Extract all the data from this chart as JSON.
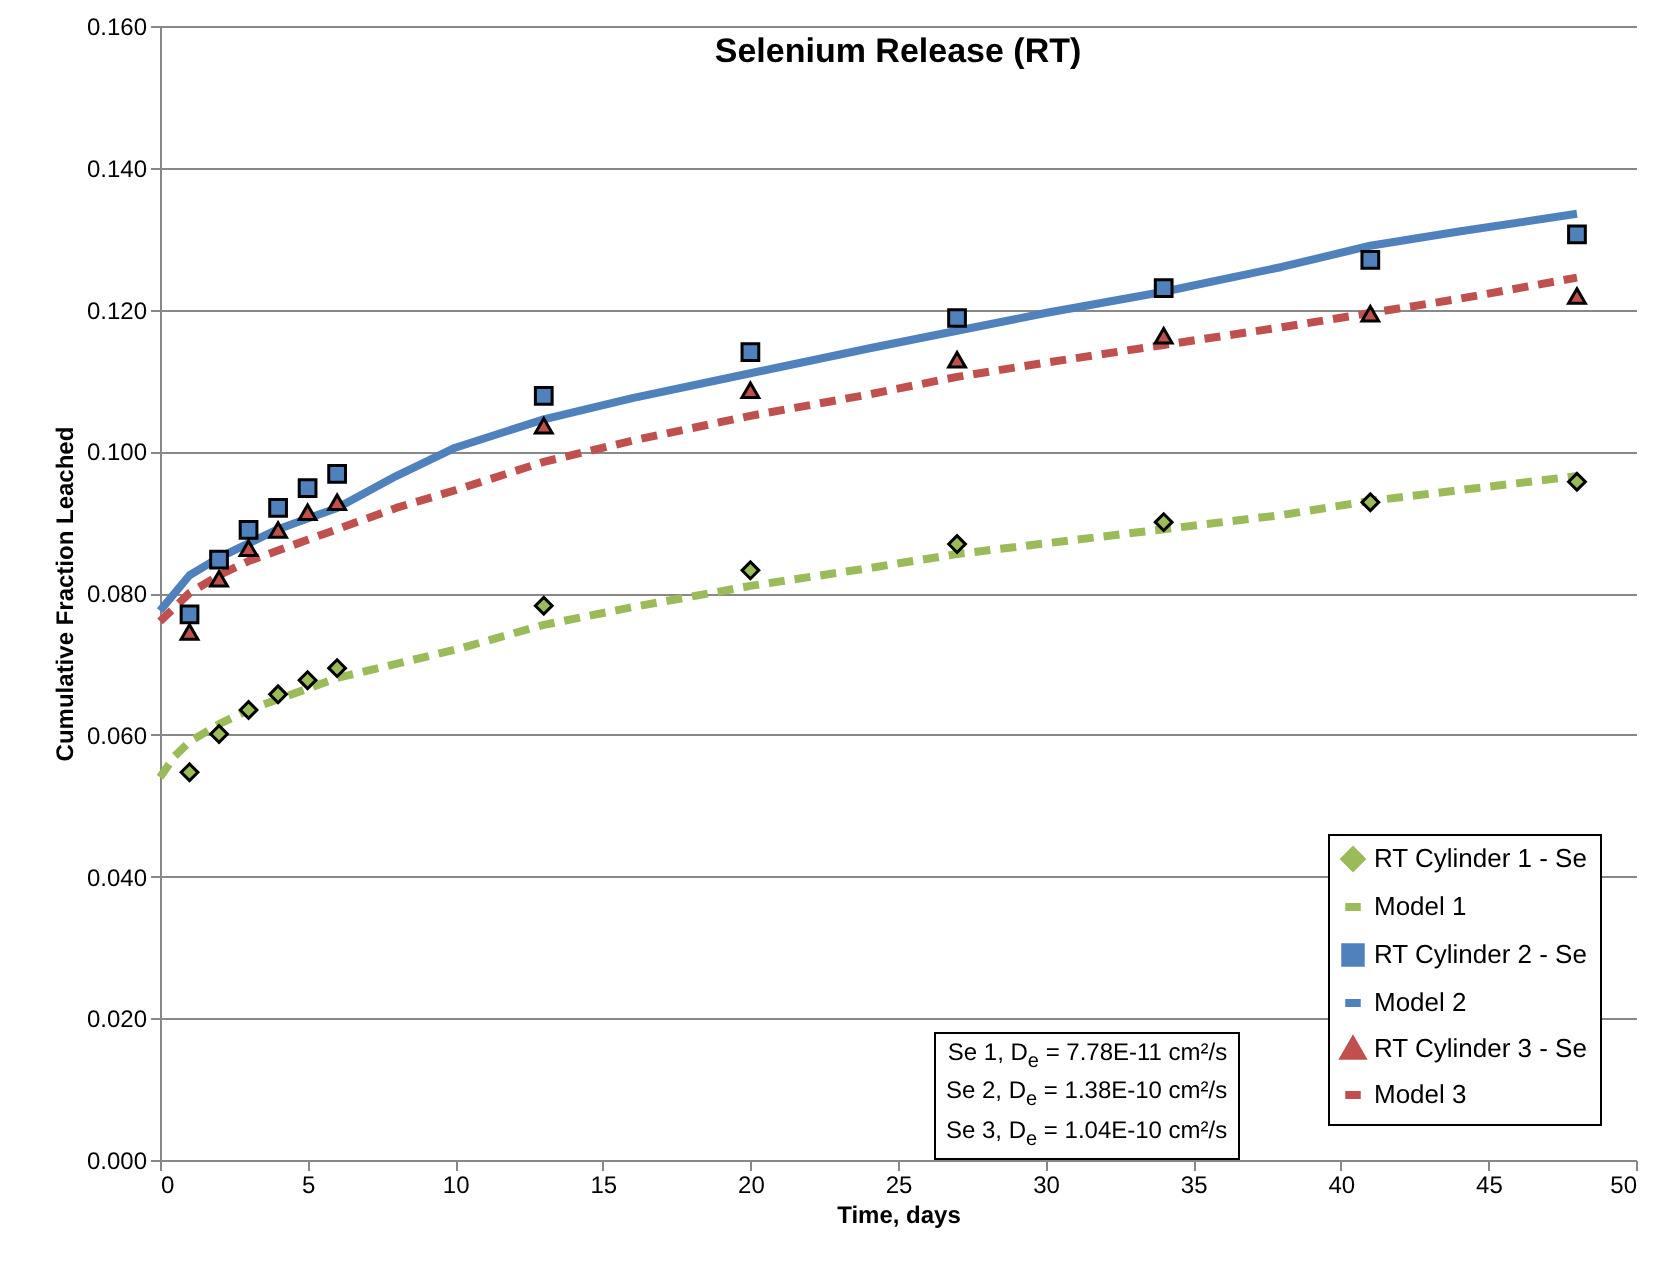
{
  "chart_data": {
    "type": "scatter",
    "title": "Selenium Release (RT)",
    "xlabel": "Time, days",
    "ylabel": "Cumulative Fraction Leached",
    "xlim": [
      0,
      50
    ],
    "xticks": [
      0,
      5,
      10,
      15,
      20,
      25,
      30,
      35,
      40,
      45,
      50
    ],
    "ylim": [
      0,
      0.16
    ],
    "yticks": [
      {
        "value": 0,
        "label": "0.000"
      },
      {
        "value": 0.02,
        "label": "0.020"
      },
      {
        "value": 0.04,
        "label": "0.040"
      },
      {
        "value": 0.06,
        "label": "0.060"
      },
      {
        "value": 0.08,
        "label": "0.080"
      },
      {
        "value": 0.1,
        "label": "0.100"
      },
      {
        "value": 0.12,
        "label": "0.120"
      },
      {
        "value": 0.14,
        "label": "0.140"
      },
      {
        "value": 0.16,
        "label": "0.160"
      }
    ],
    "grid": "y",
    "legend": "bottom right",
    "series": [
      {
        "name": "RT Cylinder 1 - Se",
        "marker": "diamond",
        "color": "#9bbb59",
        "x": [
          1,
          2,
          3,
          4,
          5,
          6,
          13,
          20,
          27,
          34,
          41,
          48
        ],
        "values": [
          0.0547,
          0.0601,
          0.0635,
          0.0657,
          0.0677,
          0.0694,
          0.0782,
          0.0832,
          0.0869,
          0.09,
          0.0928,
          0.0957
        ]
      },
      {
        "name": "Model 1",
        "type": "line",
        "line_style": "dashed",
        "color": "#9bbb59",
        "x": [
          0,
          0.5,
          1,
          2,
          3,
          4,
          5,
          6,
          8,
          10,
          13,
          16,
          20,
          24,
          27,
          30,
          34,
          38,
          41,
          44,
          48
        ],
        "values": [
          0.054,
          0.057,
          0.059,
          0.0615,
          0.0635,
          0.065,
          0.0665,
          0.068,
          0.07,
          0.072,
          0.0755,
          0.078,
          0.081,
          0.0835,
          0.0855,
          0.087,
          0.089,
          0.091,
          0.093,
          0.0945,
          0.0965
        ]
      },
      {
        "name": "RT Cylinder 2 - Se",
        "marker": "square",
        "color": "#4f81bd",
        "x": [
          1,
          2,
          3,
          4,
          5,
          6,
          13,
          20,
          27,
          34,
          41,
          48
        ],
        "values": [
          0.077,
          0.0847,
          0.0889,
          0.092,
          0.0948,
          0.0968,
          0.1078,
          0.114,
          0.1188,
          0.123,
          0.127,
          0.1306
        ]
      },
      {
        "name": "Model 2",
        "type": "line",
        "line_style": "solid",
        "color": "#4f81bd",
        "x": [
          0,
          0.5,
          1,
          2,
          3,
          4,
          5,
          6,
          8,
          10,
          13,
          16,
          20,
          24,
          27,
          30,
          34,
          38,
          41,
          44,
          48
        ],
        "values": [
          0.0775,
          0.08,
          0.0825,
          0.085,
          0.087,
          0.089,
          0.0905,
          0.092,
          0.0965,
          0.1005,
          0.1045,
          0.1075,
          0.111,
          0.1145,
          0.117,
          0.1195,
          0.1225,
          0.126,
          0.129,
          0.131,
          0.1335
        ]
      },
      {
        "name": "RT Cylinder 3 - Se",
        "marker": "triangle",
        "color": "#c0504d",
        "x": [
          1,
          2,
          3,
          4,
          5,
          6,
          13,
          20,
          27,
          34,
          41,
          48
        ],
        "values": [
          0.0745,
          0.082,
          0.0863,
          0.0889,
          0.0914,
          0.0928,
          0.1036,
          0.1086,
          0.1129,
          0.1163,
          0.1194,
          0.1219
        ]
      },
      {
        "name": "Model 3",
        "type": "line",
        "line_style": "dashed",
        "color": "#c0504d",
        "x": [
          0,
          0.5,
          1,
          2,
          3,
          4,
          5,
          6,
          8,
          10,
          13,
          16,
          20,
          24,
          27,
          30,
          34,
          38,
          41,
          44,
          48
        ],
        "values": [
          0.076,
          0.078,
          0.08,
          0.0825,
          0.0845,
          0.086,
          0.0875,
          0.089,
          0.092,
          0.0945,
          0.0985,
          0.1015,
          0.105,
          0.108,
          0.1105,
          0.1125,
          0.115,
          0.1175,
          0.1195,
          0.1215,
          0.1245
        ]
      }
    ],
    "annotations": [
      "Se 1, D$_{e}$ = 7.78E-11 cm²/s",
      "Se 2, D$_{e}$ = 1.38E-10 cm²/s",
      "Se 3, D$_{e}$ = 1.04E-10 cm²/s"
    ]
  }
}
